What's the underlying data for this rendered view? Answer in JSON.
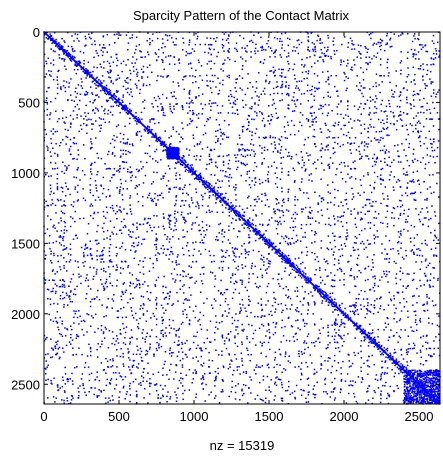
{
  "chart_data": {
    "type": "scatter",
    "title": "Sparcity Pattern of the Contact Matrix",
    "xlabel": "nz = 15319",
    "ylabel": "",
    "nz": 15319,
    "matrix_size": 2640,
    "xlim": [
      0,
      2640
    ],
    "ylim": [
      0,
      2640
    ],
    "y_axis_direction": "reversed",
    "x_ticks": [
      0,
      500,
      1000,
      1500,
      2000,
      2500
    ],
    "y_ticks": [
      0,
      500,
      1000,
      1500,
      2000,
      2500
    ],
    "x_tick_labels": [
      "0",
      "500",
      "1000",
      "1500",
      "2000",
      "2500"
    ],
    "y_tick_labels": [
      "0",
      "500",
      "1000",
      "1500",
      "2000",
      "2500"
    ],
    "marker_color": "#0000ff",
    "grid": false,
    "legend": "none",
    "pattern": {
      "main_diagonal": true,
      "dense_block": {
        "rows": [
          2400,
          2640
        ],
        "cols": [
          2400,
          2640
        ]
      },
      "dense_cluster": {
        "rows": [
          820,
          900
        ],
        "cols": [
          820,
          900
        ]
      },
      "scattered_entries": "uniform random off-diagonal, symmetric"
    }
  }
}
